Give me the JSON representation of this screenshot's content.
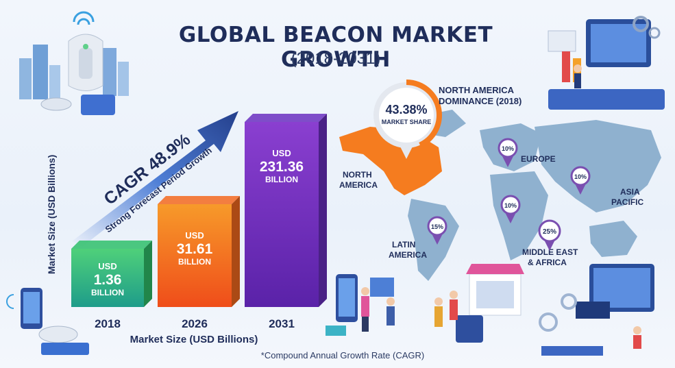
{
  "header": {
    "title": "GLOBAL BEACON MARKET GROWTH",
    "subtitle": "(2018-2031)"
  },
  "footnote": "*Compound Annual Growth Rate (CAGR)",
  "chart_data": {
    "type": "bar",
    "categories": [
      "2018",
      "2026",
      "2031"
    ],
    "values": [
      1.36,
      31.61,
      231.36
    ],
    "value_labels": [
      {
        "unit": "USD",
        "value": "1.36",
        "scale": "BILLION"
      },
      {
        "unit": "USD",
        "value": "31.61",
        "scale": "BILLION"
      },
      {
        "unit": "USD",
        "value": "231.36",
        "scale": "BILLION"
      }
    ],
    "xlabel": "Market Size (USD Billions)",
    "ylabel": "Market Size (USD Billions)",
    "bar_colors": [
      "#2fbf6a",
      "#f46a1e",
      "#6a2fc0"
    ],
    "cagr": {
      "label": "CAGR 48.9%",
      "caption": "Strong Forecast Period Growth"
    }
  },
  "map": {
    "highlight": {
      "percent": "43.38%",
      "caption": "MARKET SHARE",
      "heading_line1": "NORTH AMERICA",
      "heading_line2": "DOMINANCE (2018)"
    },
    "regions": [
      {
        "name_line1": "NORTH",
        "name_line2": "AMERICA",
        "share": "43.38%"
      },
      {
        "name_line1": "EUROPE",
        "name_line2": "",
        "share": "10%"
      },
      {
        "name_line1": "ASIA",
        "name_line2": "PACIFIC",
        "share": "10%"
      },
      {
        "name_line1": "LATIN",
        "name_line2": "AMERICA",
        "share": "15%"
      },
      {
        "name_line1": "MIDDLE EAST",
        "name_line2": "& AFRICA",
        "share": "25%"
      }
    ],
    "extra_pin_share": "10%",
    "colors": {
      "highlight": "#f57c1f",
      "land": "#8fb1cf",
      "pin": "#7a4fb0"
    }
  }
}
